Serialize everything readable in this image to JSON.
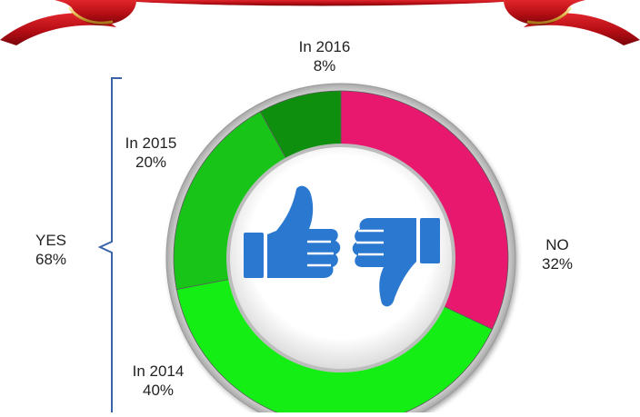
{
  "chart_data": {
    "type": "pie",
    "style": "donut",
    "slices": [
      {
        "label": "NO",
        "value": 32,
        "value_label": "32%",
        "color": "#e8186e"
      },
      {
        "label": "In 2014",
        "value": 40,
        "value_label": "40%",
        "color": "#15ee15"
      },
      {
        "label": "In 2015",
        "value": 20,
        "value_label": "20%",
        "color": "#18c418"
      },
      {
        "label": "In 2016",
        "value": 8,
        "value_label": "8%",
        "color": "#0e8f0e"
      }
    ],
    "groups": [
      {
        "label": "YES",
        "value": 68,
        "value_label": "68%",
        "members": [
          "In 2014",
          "In 2015",
          "In 2016"
        ]
      }
    ],
    "center_icons": [
      "thumbs-up-icon",
      "thumbs-down-icon"
    ],
    "icon_color": "#2b78d0",
    "ribbon_color": "#c8141c"
  }
}
